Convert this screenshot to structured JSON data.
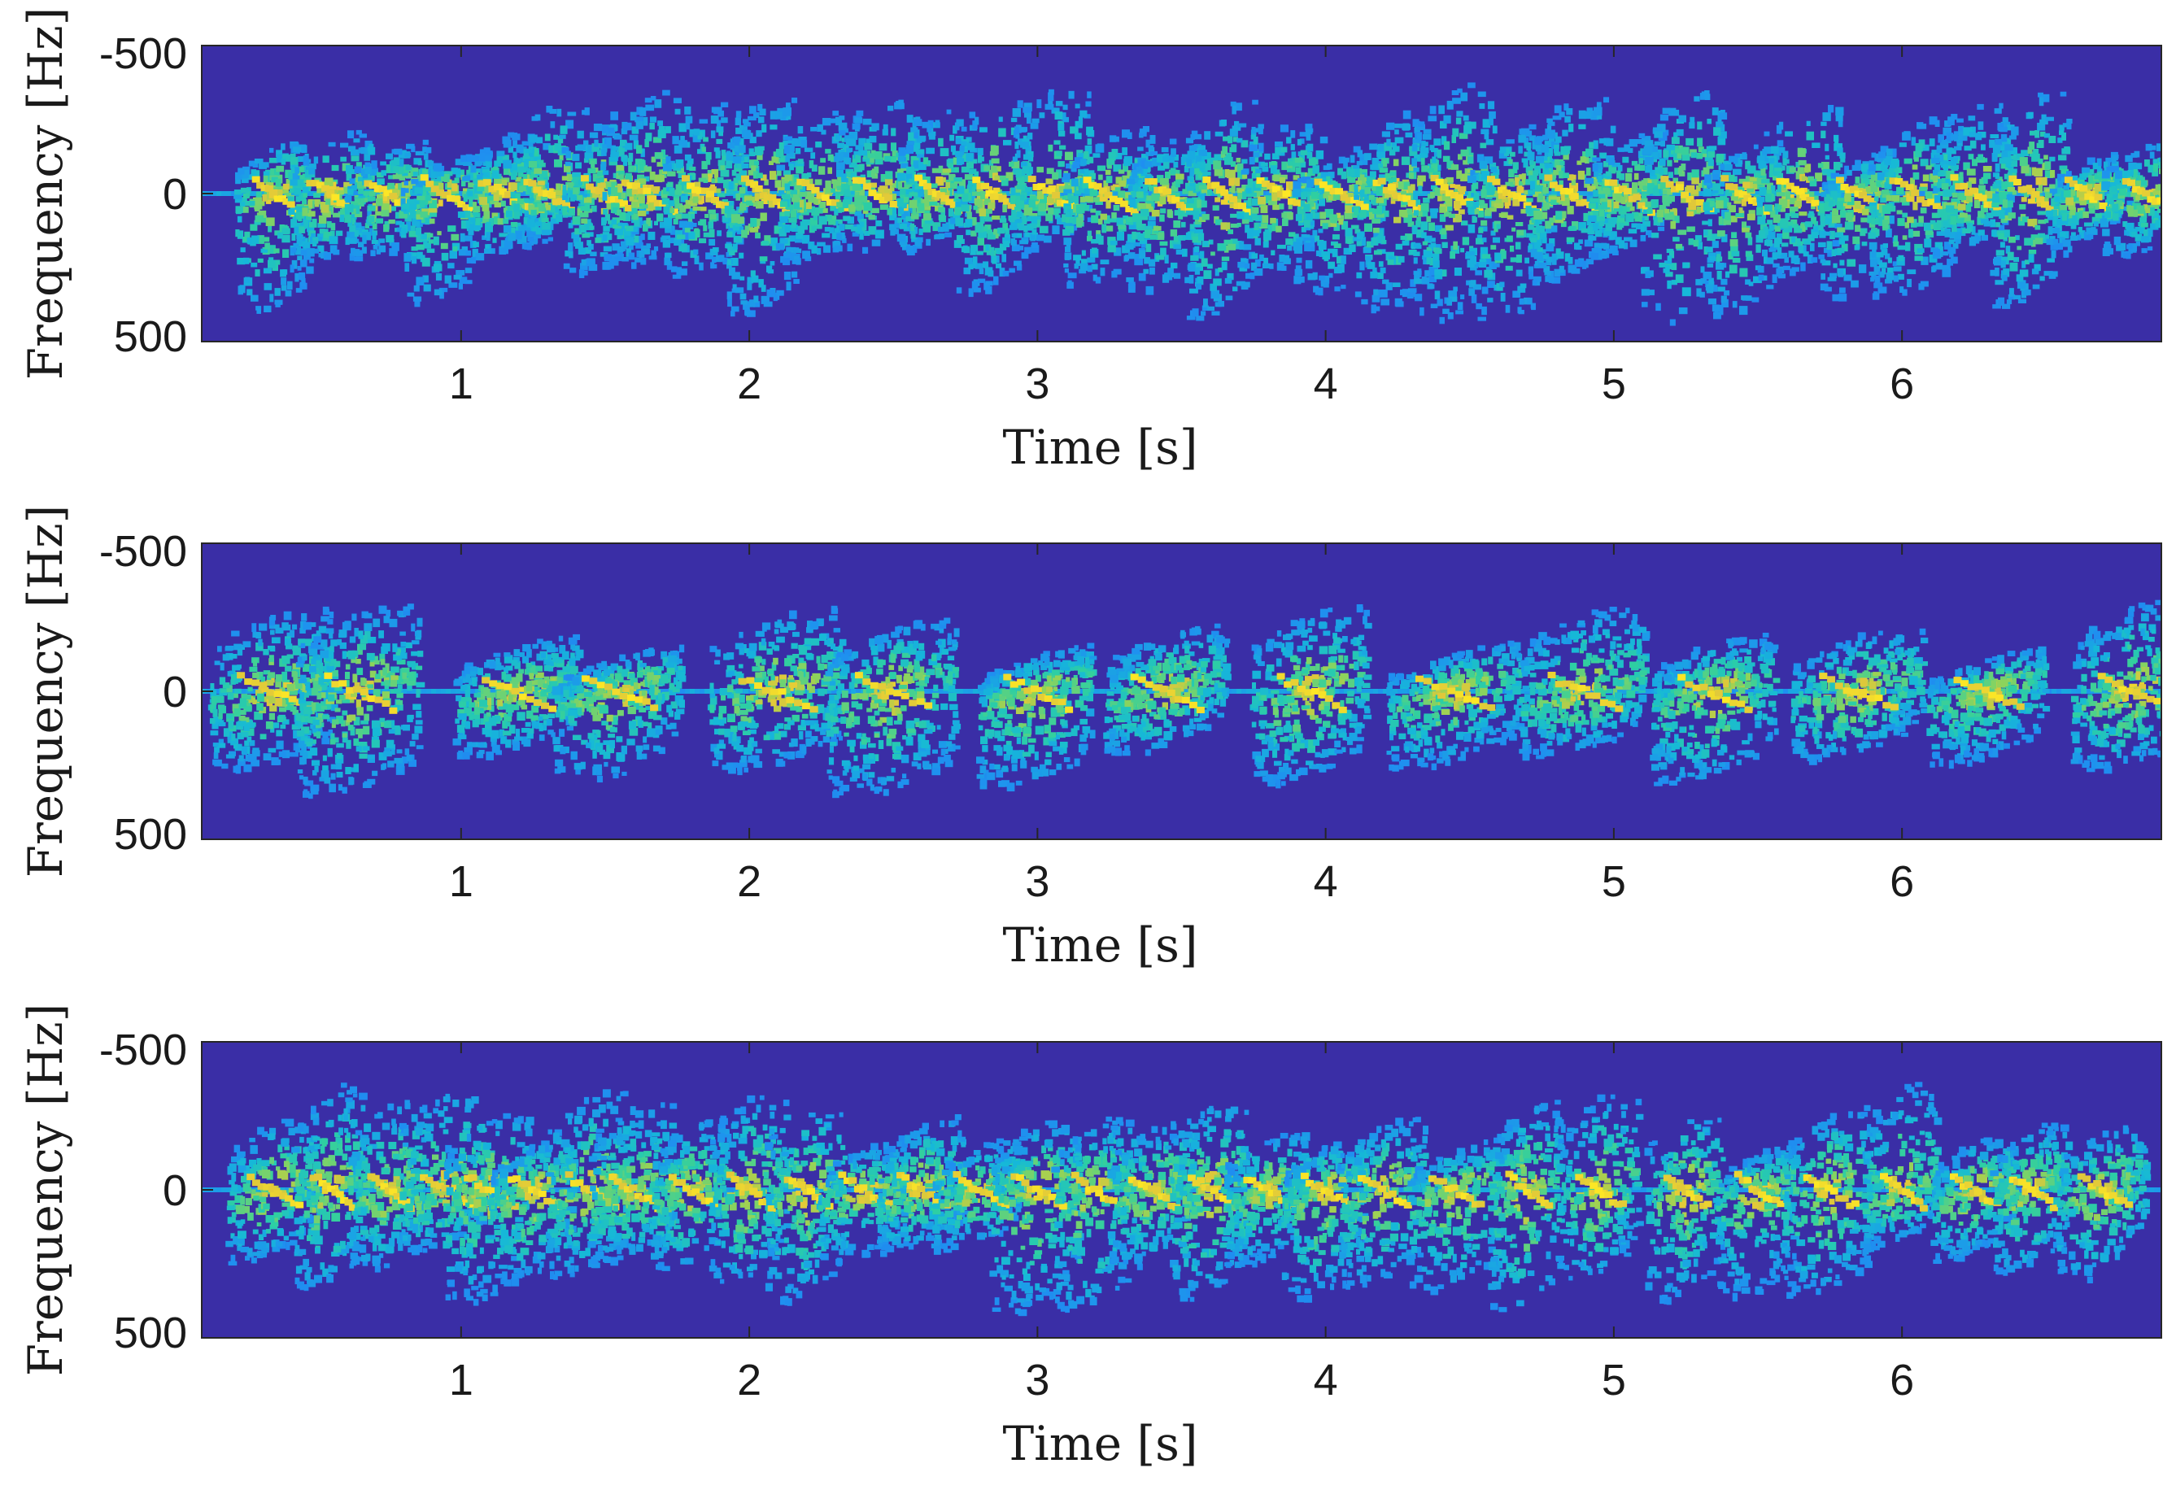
{
  "colors": {
    "background_low": "#3a2ea6",
    "colormap": [
      "#3a2ea6",
      "#2f56d8",
      "#1f8ff0",
      "#16b8d8",
      "#2ecfa2",
      "#8fd35a",
      "#e0c83a",
      "#fde725"
    ]
  },
  "chart_data": [
    {
      "type": "heatmap",
      "title": "",
      "xlabel": "Time [s]",
      "ylabel": "Frequency [Hz]",
      "xlim": [
        0.1,
        6.9
      ],
      "ylim": [
        -500,
        500
      ],
      "y_reversed": true,
      "xticks": [
        1,
        2,
        3,
        4,
        5,
        6
      ],
      "yticks": [
        -500,
        0,
        500
      ],
      "xtick_labels": [
        "1",
        "2",
        "3",
        "4",
        "5",
        "6"
      ],
      "ytick_labels": [
        "-500",
        "0",
        "500"
      ],
      "grid": false,
      "colormap": "parula",
      "burst_times_s": [
        0.35,
        0.55,
        0.75,
        0.95,
        1.15,
        1.3,
        1.5,
        1.65,
        1.85,
        2.05,
        2.25,
        2.45,
        2.65,
        2.85,
        3.05,
        3.25,
        3.45,
        3.65,
        3.85,
        4.05,
        4.25,
        4.45,
        4.65,
        4.85,
        5.05,
        5.25,
        5.45,
        5.65,
        5.85,
        6.05,
        6.25,
        6.45,
        6.65,
        6.85
      ]
    },
    {
      "type": "heatmap",
      "title": "",
      "xlabel": "Time [s]",
      "ylabel": "Frequency [Hz]",
      "xlim": [
        0.1,
        6.9
      ],
      "ylim": [
        -500,
        500
      ],
      "y_reversed": true,
      "xticks": [
        1,
        2,
        3,
        4,
        5,
        6
      ],
      "yticks": [
        -500,
        0,
        500
      ],
      "xtick_labels": [
        "1",
        "2",
        "3",
        "4",
        "5",
        "6"
      ],
      "ytick_labels": [
        "-500",
        "0",
        "500"
      ],
      "grid": false,
      "colormap": "parula",
      "burst_times_s": [
        0.35,
        0.65,
        1.2,
        1.55,
        2.1,
        2.5,
        3.0,
        3.45,
        3.95,
        4.45,
        4.9,
        5.35,
        5.85,
        6.3,
        6.8
      ]
    },
    {
      "type": "heatmap",
      "title": "",
      "xlabel": "Time [s]",
      "ylabel": "Frequency [Hz]",
      "xlim": [
        0.1,
        6.9
      ],
      "ylim": [
        -500,
        500
      ],
      "y_reversed": true,
      "xticks": [
        1,
        2,
        3,
        4,
        5,
        6
      ],
      "yticks": [
        -500,
        0,
        500
      ],
      "xtick_labels": [
        "1",
        "2",
        "3",
        "4",
        "5",
        "6"
      ],
      "ytick_labels": [
        "-500",
        "0",
        "500"
      ],
      "grid": false,
      "colormap": "parula",
      "burst_times_s": [
        0.35,
        0.55,
        0.75,
        0.95,
        1.1,
        1.25,
        1.45,
        1.6,
        1.8,
        2.0,
        2.2,
        2.4,
        2.6,
        2.8,
        3.0,
        3.2,
        3.4,
        3.6,
        3.8,
        4.0,
        4.2,
        4.45,
        4.7,
        4.95,
        5.25,
        5.5,
        5.75,
        6.0,
        6.25,
        6.45,
        6.7
      ]
    }
  ]
}
